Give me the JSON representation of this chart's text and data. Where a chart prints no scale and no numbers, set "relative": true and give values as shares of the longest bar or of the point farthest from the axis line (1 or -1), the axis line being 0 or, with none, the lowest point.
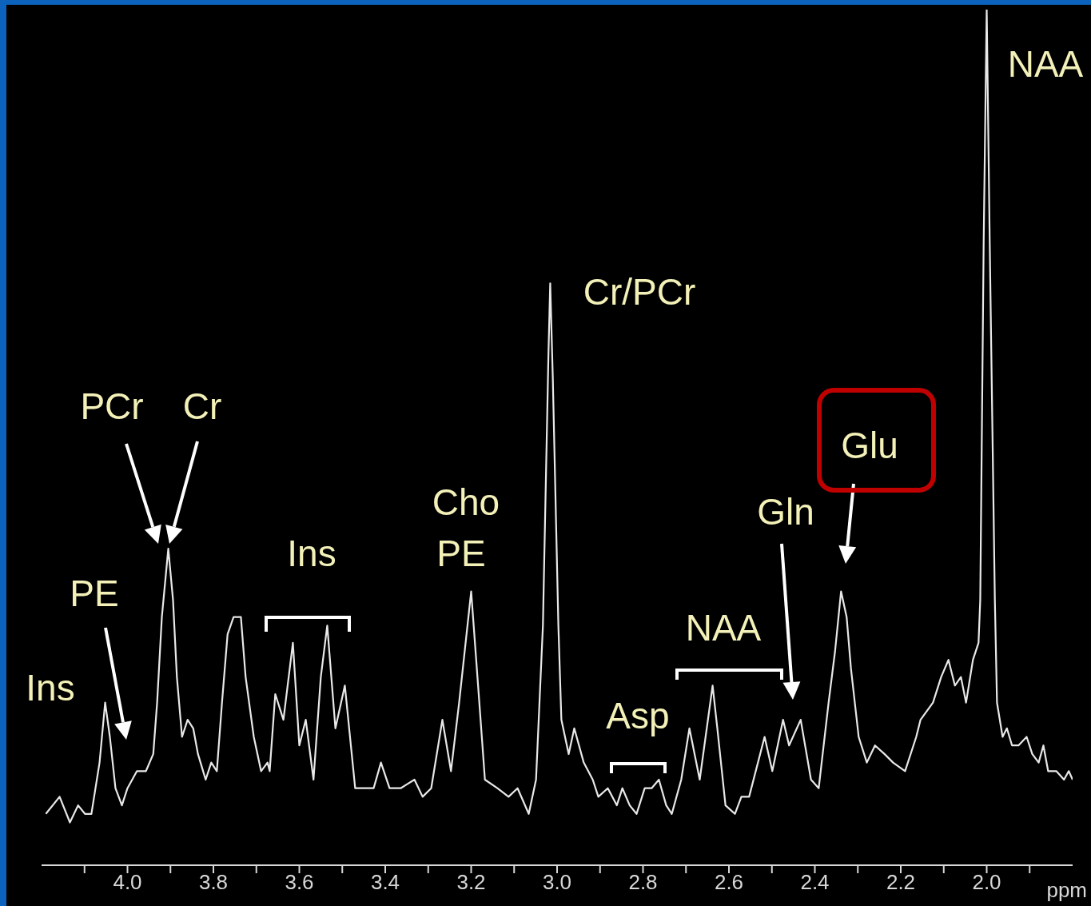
{
  "chart_data": {
    "type": "line",
    "relative": true,
    "xlabel": "ppm",
    "xlim": [
      4.2,
      1.8
    ],
    "xticks": [
      {
        "value": 4.1,
        "label": null
      },
      {
        "value": 4,
        "label": "4.0"
      },
      {
        "value": 3.9,
        "label": null
      },
      3.8,
      {
        "value": 3.7,
        "label": null
      },
      3.6,
      {
        "value": 3.5,
        "label": null
      },
      3.4,
      {
        "value": 3.3,
        "label": null
      },
      3.2,
      {
        "value": 3.1,
        "label": null
      },
      {
        "value": 3,
        "label": "3.0"
      },
      {
        "value": 2.9,
        "label": null
      },
      2.8,
      {
        "value": 2.7,
        "label": null
      },
      2.6,
      {
        "value": 2.5,
        "label": null
      },
      2.4,
      {
        "value": 2.3,
        "label": null
      },
      2.2,
      {
        "value": 2.1,
        "label": null
      },
      {
        "value": 2,
        "label": "2.0"
      },
      {
        "value": 1.9,
        "label": null
      }
    ],
    "marker": "none",
    "series": [
      {
        "color": "#e8e8e8",
        "x": [
          4.19,
          4.158,
          4.134,
          4.115,
          4.099,
          4.084,
          4.065,
          4.052,
          4.041,
          4.028,
          4.013,
          4.0,
          3.978,
          3.957,
          3.94,
          3.931,
          3.92,
          3.905,
          3.894,
          3.885,
          3.873,
          3.86,
          3.847,
          3.836,
          3.818,
          3.805,
          3.792,
          3.78,
          3.767,
          3.753,
          3.736,
          3.725,
          3.706,
          3.689,
          3.674,
          3.669,
          3.656,
          3.637,
          3.615,
          3.6,
          3.585,
          3.567,
          3.55,
          3.535,
          3.516,
          3.494,
          3.47,
          3.451,
          3.427,
          3.41,
          3.39,
          3.364,
          3.332,
          3.313,
          3.293,
          3.267,
          3.247,
          3.228,
          3.2,
          3.181,
          3.168,
          3.139,
          3.113,
          3.092,
          3.066,
          3.049,
          3.033,
          3.02,
          3.016,
          3.01,
          2.997,
          2.99,
          2.973,
          2.96,
          2.938,
          2.917,
          2.904,
          2.882,
          2.861,
          2.848,
          2.831,
          2.815,
          2.796,
          2.78,
          2.763,
          2.746,
          2.733,
          2.711,
          2.692,
          2.668,
          2.638,
          2.627,
          2.608,
          2.586,
          2.571,
          2.553,
          2.517,
          2.499,
          2.474,
          2.46,
          2.433,
          2.409,
          2.391,
          2.368,
          2.353,
          2.339,
          2.326,
          2.316,
          2.298,
          2.279,
          2.26,
          2.238,
          2.218,
          2.19,
          2.164,
          2.154,
          2.125,
          2.106,
          2.089,
          2.074,
          2.06,
          2.048,
          2.032,
          2.019,
          2.015,
          2.007,
          2.0,
          1.993,
          1.981,
          1.976,
          1.963,
          1.953,
          1.941,
          1.926,
          1.907,
          1.894,
          1.879,
          1.868,
          1.857,
          1.838,
          1.82,
          1.809,
          1.8
        ],
        "values": [
          0.06,
          0.08,
          0.05,
          0.07,
          0.06,
          0.06,
          0.12,
          0.19,
          0.15,
          0.09,
          0.07,
          0.09,
          0.11,
          0.11,
          0.13,
          0.19,
          0.29,
          0.37,
          0.31,
          0.22,
          0.15,
          0.17,
          0.16,
          0.13,
          0.1,
          0.12,
          0.11,
          0.19,
          0.27,
          0.29,
          0.29,
          0.22,
          0.15,
          0.11,
          0.12,
          0.11,
          0.2,
          0.17,
          0.26,
          0.14,
          0.17,
          0.1,
          0.22,
          0.28,
          0.16,
          0.21,
          0.09,
          0.09,
          0.09,
          0.12,
          0.09,
          0.09,
          0.1,
          0.08,
          0.09,
          0.17,
          0.11,
          0.19,
          0.32,
          0.19,
          0.1,
          0.09,
          0.08,
          0.09,
          0.06,
          0.1,
          0.28,
          0.6,
          0.68,
          0.57,
          0.28,
          0.17,
          0.13,
          0.16,
          0.12,
          0.1,
          0.08,
          0.09,
          0.07,
          0.09,
          0.07,
          0.06,
          0.09,
          0.09,
          0.1,
          0.07,
          0.06,
          0.1,
          0.16,
          0.1,
          0.21,
          0.16,
          0.07,
          0.06,
          0.08,
          0.08,
          0.15,
          0.11,
          0.17,
          0.14,
          0.17,
          0.1,
          0.09,
          0.19,
          0.25,
          0.32,
          0.29,
          0.23,
          0.15,
          0.12,
          0.14,
          0.13,
          0.12,
          0.11,
          0.15,
          0.17,
          0.19,
          0.22,
          0.24,
          0.21,
          0.22,
          0.19,
          0.24,
          0.26,
          0.31,
          0.73,
          1.0,
          0.73,
          0.31,
          0.19,
          0.15,
          0.16,
          0.14,
          0.14,
          0.15,
          0.13,
          0.12,
          0.14,
          0.11,
          0.11,
          0.1,
          0.11,
          0.1
        ]
      }
    ],
    "annotations": [
      "NAA",
      "Cr/PCr",
      "PCr",
      "Cr",
      "PE",
      "Ins",
      "Ins",
      "Cho",
      "PE",
      "Asp",
      "NAA",
      "Gln",
      "Glu"
    ]
  }
}
